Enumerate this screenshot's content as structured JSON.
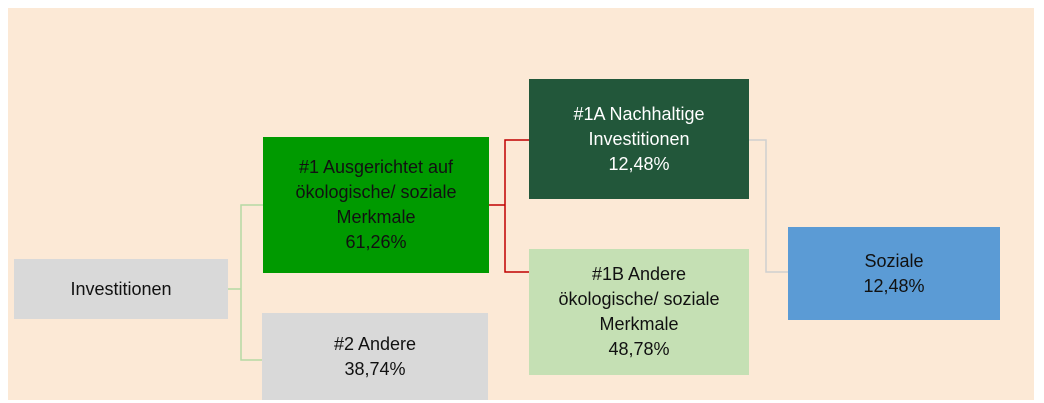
{
  "nodes": [
    {
      "lines": [
        "Investitionen"
      ]
    },
    {
      "lines": [
        "#1 Ausgerichtet auf",
        "ökologische/ soziale",
        "Merkmale",
        "61,26%"
      ]
    },
    {
      "lines": [
        "#2 Andere",
        "38,74%"
      ]
    },
    {
      "lines": [
        "#1A Nachhaltige",
        "Investitionen",
        "12,48%"
      ]
    },
    {
      "lines": [
        "#1B Andere",
        "ökologische/ soziale",
        "Merkmale",
        "48,78%"
      ]
    },
    {
      "lines": [
        "Soziale",
        "12,48%"
      ]
    }
  ]
}
